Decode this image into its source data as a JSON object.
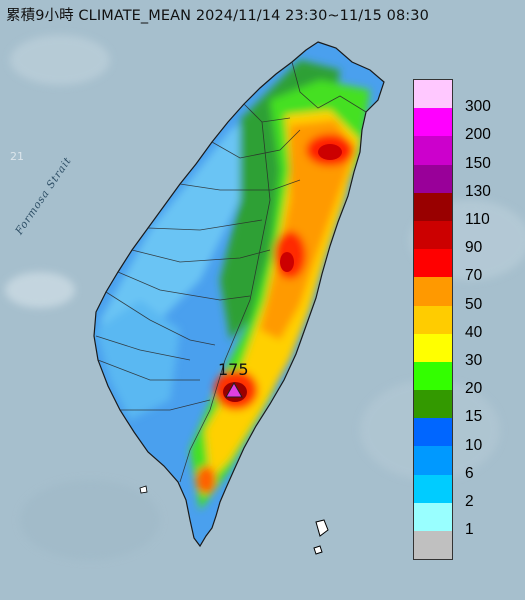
{
  "title": "累積9小時 CLIMATE_MEAN 2024/11/14 23:30~11/15 08:30",
  "strait_label": "Formosa Strait",
  "peak": {
    "value": "175",
    "marker_icon": "triangle-marker-icon",
    "marker_color": "#e040e0"
  },
  "legend": [
    {
      "label": "300",
      "color": "#ffc8ff"
    },
    {
      "label": "200",
      "color": "#ff00ff"
    },
    {
      "label": "150",
      "color": "#cc00cc"
    },
    {
      "label": "130",
      "color": "#990099"
    },
    {
      "label": "110",
      "color": "#990000"
    },
    {
      "label": "90",
      "color": "#cc0000"
    },
    {
      "label": "70",
      "color": "#ff0000"
    },
    {
      "label": "50",
      "color": "#ff9900"
    },
    {
      "label": "40",
      "color": "#ffcc00"
    },
    {
      "label": "30",
      "color": "#ffff00"
    },
    {
      "label": "20",
      "color": "#33ff00"
    },
    {
      "label": "15",
      "color": "#339900"
    },
    {
      "label": "10",
      "color": "#0066ff"
    },
    {
      "label": "6",
      "color": "#0099ff"
    },
    {
      "label": "2",
      "color": "#00ccff"
    },
    {
      "label": "1",
      "color": "#99ffff"
    },
    {
      "label": "",
      "color": "#c0c0c0"
    }
  ]
}
